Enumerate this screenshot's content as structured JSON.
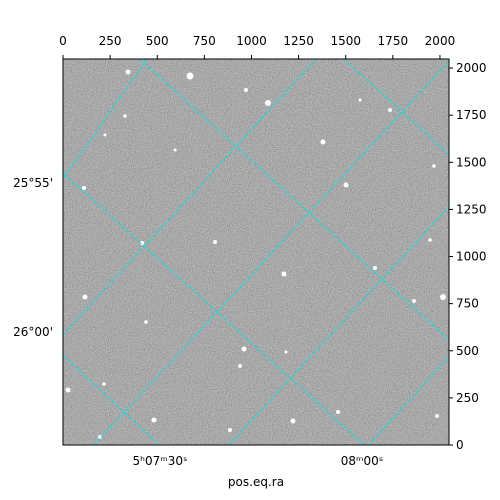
{
  "chart_data": {
    "type": "image",
    "xlabel": "pos.eq.ra",
    "xlim": [
      0,
      2048
    ],
    "xticks": [
      0,
      250,
      500,
      750,
      1000,
      1250,
      1500,
      1750,
      2000
    ],
    "ylim": [
      0,
      2048
    ],
    "yticks": [
      0,
      250,
      500,
      750,
      1000,
      1250,
      1500,
      1750,
      2000
    ],
    "ra_ticks": [
      "5ʰ07ᵐ30ˢ",
      "08ᵐ00ˢ"
    ],
    "dec_ticks": [
      "25°55'",
      "26°00'"
    ],
    "grid_color": "#00e5e5"
  }
}
